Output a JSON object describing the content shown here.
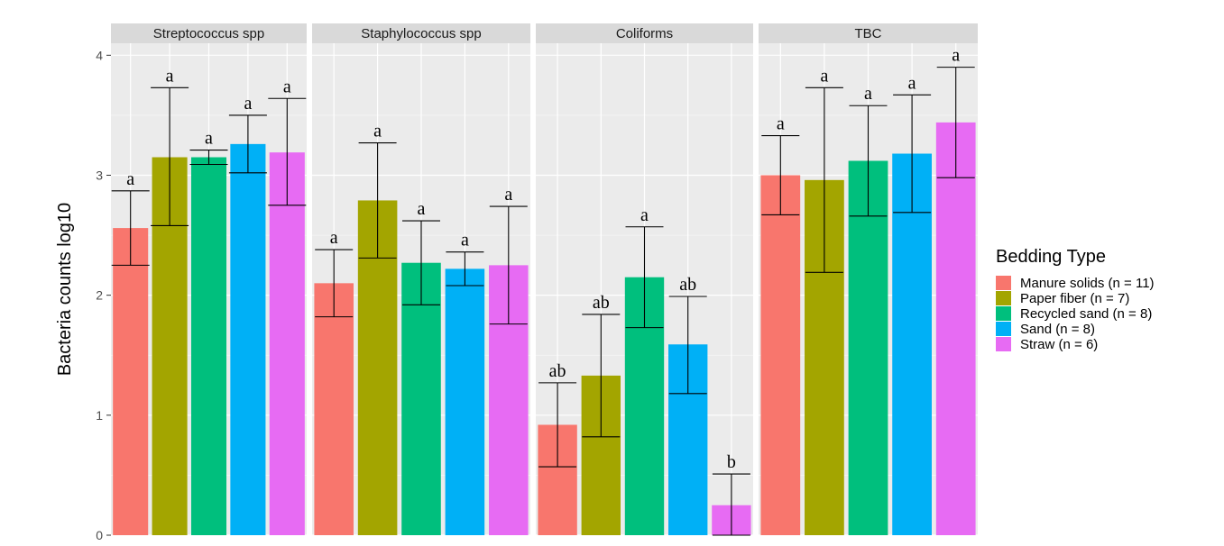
{
  "chart_data": {
    "type": "bar",
    "ylabel": "Bacteria counts log10",
    "ylim": [
      0,
      4.1
    ],
    "yticks": [
      0,
      1,
      2,
      3,
      4
    ],
    "grid": true,
    "legend": {
      "title": "Bedding Type",
      "placement": "right",
      "entries": [
        {
          "label": "Manure solids (n = 11)",
          "color": "#F8766D"
        },
        {
          "label": "Paper fiber (n = 7)",
          "color": "#A3A500"
        },
        {
          "label": "Recycled sand (n = 8)",
          "color": "#00BF7D"
        },
        {
          "label": "Sand (n = 8)",
          "color": "#00B0F6"
        },
        {
          "label": "Straw (n = 6)",
          "color": "#E76BF3"
        }
      ]
    },
    "panels": [
      {
        "title": "Streptococcus spp",
        "values": [
          2.56,
          3.15,
          3.15,
          3.26,
          3.19
        ],
        "err_low": [
          2.25,
          2.58,
          3.09,
          3.02,
          2.75
        ],
        "err_high": [
          2.87,
          3.73,
          3.21,
          3.5,
          3.64
        ],
        "labels": [
          "a",
          "a",
          "a",
          "a",
          "a"
        ]
      },
      {
        "title": "Staphylococcus spp",
        "values": [
          2.1,
          2.79,
          2.27,
          2.22,
          2.25
        ],
        "err_low": [
          1.82,
          2.31,
          1.92,
          2.08,
          1.76
        ],
        "err_high": [
          2.38,
          3.27,
          2.62,
          2.36,
          2.74
        ],
        "labels": [
          "a",
          "a",
          "a",
          "a",
          "a"
        ]
      },
      {
        "title": "Coliforms",
        "values": [
          0.92,
          1.33,
          2.15,
          1.59,
          0.25
        ],
        "err_low": [
          0.57,
          0.82,
          1.73,
          1.18,
          0.0
        ],
        "err_high": [
          1.27,
          1.84,
          2.57,
          1.99,
          0.51
        ],
        "labels": [
          "ab",
          "ab",
          "a",
          "ab",
          "b"
        ]
      },
      {
        "title": "TBC",
        "values": [
          3.0,
          2.96,
          3.12,
          3.18,
          3.44
        ],
        "err_low": [
          2.67,
          2.19,
          2.66,
          2.69,
          2.98
        ],
        "err_high": [
          3.33,
          3.73,
          3.58,
          3.67,
          3.9
        ],
        "labels": [
          "a",
          "a",
          "a",
          "a",
          "a"
        ]
      }
    ]
  }
}
